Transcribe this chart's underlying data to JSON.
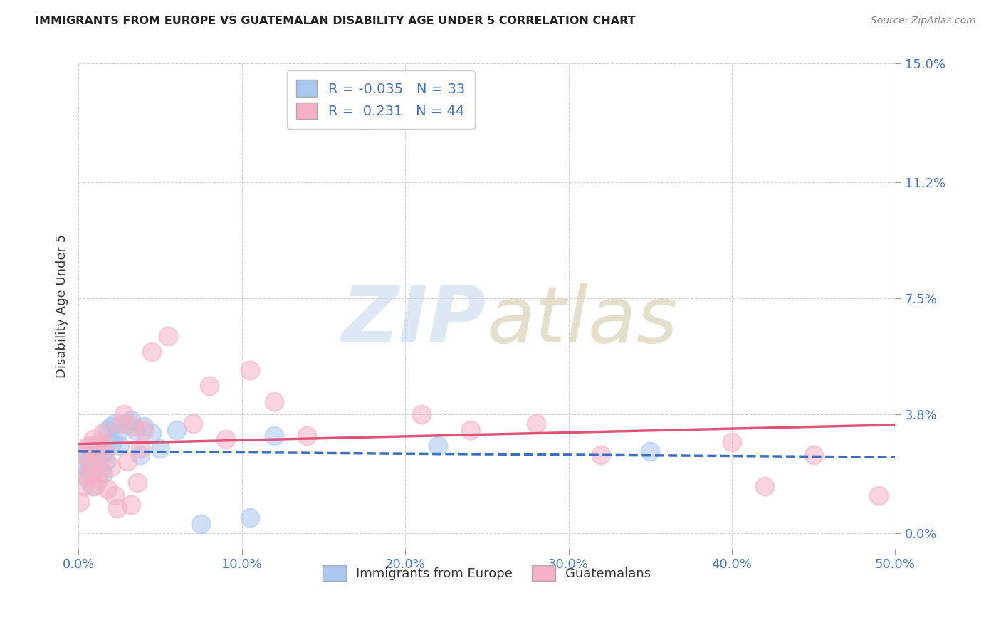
{
  "title": "IMMIGRANTS FROM EUROPE VS GUATEMALAN DISABILITY AGE UNDER 5 CORRELATION CHART",
  "source": "Source: ZipAtlas.com",
  "ylabel": "Disability Age Under 5",
  "ytick_labels": [
    "0.0%",
    "3.8%",
    "7.5%",
    "11.2%",
    "15.0%"
  ],
  "ytick_values": [
    0.0,
    3.8,
    7.5,
    11.2,
    15.0
  ],
  "xtick_values": [
    0.0,
    10.0,
    20.0,
    30.0,
    40.0,
    50.0
  ],
  "xtick_labels": [
    "0.0%",
    "10.0%",
    "20.0%",
    "30.0%",
    "40.0%",
    "50.0%"
  ],
  "xlim": [
    0.0,
    50.0
  ],
  "ylim": [
    -0.5,
    15.0
  ],
  "legend_blue_label": "Immigrants from Europe",
  "legend_pink_label": "Guatemalans",
  "r_blue": -0.035,
  "n_blue": 33,
  "r_pink": 0.231,
  "n_pink": 44,
  "blue_color": "#a8c8f0",
  "pink_color": "#f5b0c5",
  "blue_line_color": "#3a6fc4",
  "pink_line_color": "#e05577",
  "blue_x": [
    0.2,
    0.4,
    0.5,
    0.6,
    0.7,
    0.8,
    0.9,
    1.0,
    1.1,
    1.2,
    1.4,
    1.5,
    1.6,
    1.7,
    1.8,
    2.0,
    2.1,
    2.2,
    2.4,
    2.5,
    3.0,
    3.2,
    3.5,
    3.8,
    4.0,
    4.5,
    5.0,
    6.0,
    7.5,
    10.5,
    12.0,
    22.0,
    35.0
  ],
  "blue_y": [
    2.2,
    2.5,
    1.8,
    2.0,
    2.3,
    1.5,
    2.6,
    2.1,
    2.8,
    2.4,
    2.7,
    1.9,
    2.6,
    2.3,
    3.3,
    3.4,
    2.9,
    3.5,
    3.2,
    2.8,
    3.5,
    3.6,
    3.3,
    2.5,
    3.4,
    3.2,
    2.7,
    3.3,
    0.3,
    0.5,
    3.1,
    2.8,
    2.6
  ],
  "pink_x": [
    0.1,
    0.3,
    0.4,
    0.5,
    0.6,
    0.7,
    0.8,
    0.9,
    1.0,
    1.1,
    1.2,
    1.3,
    1.4,
    1.5,
    1.6,
    1.8,
    2.0,
    2.2,
    2.4,
    2.6,
    2.8,
    3.0,
    3.2,
    3.4,
    3.6,
    3.8,
    4.0,
    4.5,
    5.5,
    7.0,
    8.0,
    9.0,
    10.5,
    12.0,
    14.0,
    17.5,
    21.0,
    24.0,
    28.0,
    32.0,
    40.0,
    42.0,
    45.0,
    49.0
  ],
  "pink_y": [
    1.0,
    1.5,
    2.5,
    1.8,
    2.8,
    2.2,
    1.9,
    3.0,
    1.5,
    2.4,
    1.7,
    2.9,
    2.0,
    3.2,
    2.6,
    1.4,
    2.1,
    1.2,
    0.8,
    3.5,
    3.8,
    2.3,
    0.9,
    3.4,
    1.6,
    2.7,
    3.3,
    5.8,
    6.3,
    3.5,
    4.7,
    3.0,
    5.2,
    4.2,
    3.1,
    13.2,
    3.8,
    3.3,
    3.5,
    2.5,
    2.9,
    1.5,
    2.5,
    1.2
  ]
}
